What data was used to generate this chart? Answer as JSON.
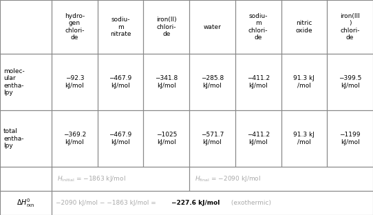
{
  "col_headers": [
    "hydro-\ngen\nchlori-\nde",
    "sodiu-\nm\nnitrate",
    "iron(II)\nchlori-\nde",
    "water",
    "sodiu-\nm\nchlori-\nde",
    "nitric\noxide",
    "iron(III\n)\nchlori-\nde"
  ],
  "mol_enthalpy": [
    "−92.3\nkJ/mol",
    "−467.9\nkJ/mol",
    "−341.8\nkJ/mol",
    "−285.8\nkJ/mol",
    "−411.2\nkJ/mol",
    "91.3 kJ\n/mol",
    "−399.5\nkJ/mol"
  ],
  "total_enthalpy": [
    "−369.2\nkJ/mol",
    "−467.9\nkJ/mol",
    "−1025\nkJ/mol",
    "−571.7\nkJ/mol",
    "−411.2\nkJ/mol",
    "91.3 kJ\n/mol",
    "−1199\nkJ/mol"
  ],
  "background_color": "#ffffff",
  "text_color": "#000000",
  "gray_color": "#aaaaaa",
  "border_color": "#888888"
}
